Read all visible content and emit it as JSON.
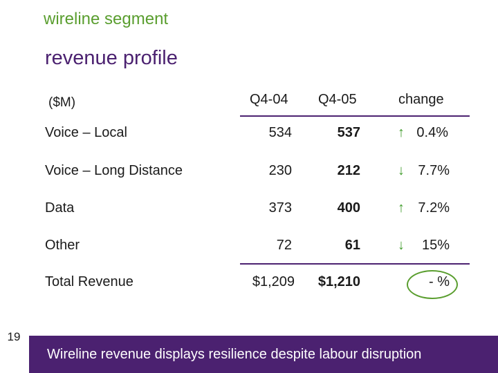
{
  "slide": {
    "segment_title": "wireline segment",
    "profile_title": "revenue profile",
    "units": "($M)",
    "page_number": "19",
    "tagline": "Wireline revenue displays resilience despite labour disruption"
  },
  "table": {
    "headers": {
      "q404": "Q4-04",
      "q405": "Q4-05",
      "change": "change"
    },
    "rows": [
      {
        "label": "Voice – Local",
        "q404": "534",
        "q405": "537",
        "direction": "up",
        "arrow": "↑",
        "change": "0.4%"
      },
      {
        "label": "Voice – Long Distance",
        "q404": "230",
        "q405": "212",
        "direction": "down",
        "arrow": "↓",
        "change": "7.7%"
      },
      {
        "label": "Data",
        "q404": "373",
        "q405": "400",
        "direction": "up",
        "arrow": "↑",
        "change": "7.2%"
      },
      {
        "label": "Other",
        "q404": "72",
        "q405": "61",
        "direction": "down",
        "arrow": "↓",
        "change": "15%"
      }
    ],
    "total": {
      "label": "Total Revenue",
      "q404": "$1,209",
      "q405": "$1,210",
      "change": "- %"
    }
  },
  "colors": {
    "accent_purple": "#4b2170",
    "accent_green": "#5a9e2f",
    "arrow_green": "#3f9b2a"
  }
}
